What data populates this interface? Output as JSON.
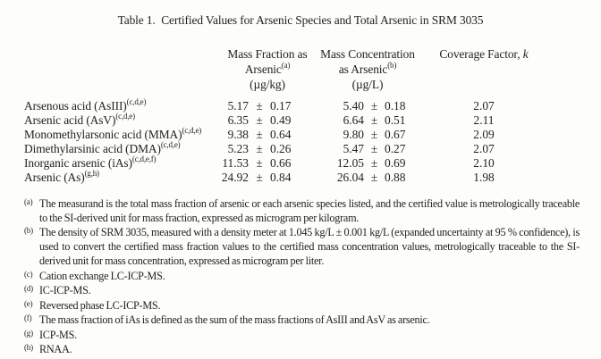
{
  "title": "Table 1.  Certified Values for Arsenic Species and Total Arsenic in SRM 3035",
  "pm_sign": "±",
  "table": {
    "columns": {
      "mass_fraction": {
        "line1": "Mass Fraction as",
        "name": "Arsenic",
        "sup": "(a)",
        "unit": "(µg/kg)"
      },
      "mass_concentration": {
        "line1": "Mass Concentration",
        "name": "as Arsenic",
        "sup": "(b)",
        "unit": "(µg/L)"
      },
      "coverage_factor": {
        "label": "Coverage Factor, ",
        "symbol": "k"
      }
    },
    "rows": [
      {
        "species": "Arsenous acid (AsIII)",
        "sup": "(c,d,e)",
        "mass_fraction": {
          "value": "5.17",
          "uncertainty": "0.17"
        },
        "mass_concentration": {
          "value": "5.40",
          "uncertainty": "0.18"
        },
        "coverage_factor": "2.07"
      },
      {
        "species": "Arsenic acid (AsV)",
        "sup": "(c,d,e)",
        "mass_fraction": {
          "value": "6.35",
          "uncertainty": "0.49"
        },
        "mass_concentration": {
          "value": "6.64",
          "uncertainty": "0.51"
        },
        "coverage_factor": "2.11"
      },
      {
        "species": "Monomethylarsonic acid (MMA)",
        "sup": "(c,d,e)",
        "mass_fraction": {
          "value": "9.38",
          "uncertainty": "0.64"
        },
        "mass_concentration": {
          "value": "9.80",
          "uncertainty": "0.67"
        },
        "coverage_factor": "2.09"
      },
      {
        "species": "Dimethylarsinic acid (DMA)",
        "sup": "(c,d,e)",
        "mass_fraction": {
          "value": "5.23",
          "uncertainty": "0.26"
        },
        "mass_concentration": {
          "value": "5.47",
          "uncertainty": "0.27"
        },
        "coverage_factor": "2.07"
      },
      {
        "species": "Inorganic arsenic (iAs)",
        "sup": "(c,d,e,f)",
        "mass_fraction": {
          "value": "11.53",
          "uncertainty": "0.66"
        },
        "mass_concentration": {
          "value": "12.05",
          "uncertainty": "0.69"
        },
        "coverage_factor": "2.10"
      },
      {
        "species": "Arsenic (As)",
        "sup": "(g,h)",
        "mass_fraction": {
          "value": "24.92",
          "uncertainty": "0.84"
        },
        "mass_concentration": {
          "value": "26.04",
          "uncertainty": "0.88"
        },
        "coverage_factor": "1.98"
      }
    ]
  },
  "footnotes": [
    {
      "marker": "(a)",
      "text": "The measurand is the total mass fraction of arsenic or each arsenic species listed, and the certified value is metrologically traceable to the SI-derived unit for mass fraction, expressed as microgram per kilogram."
    },
    {
      "marker": "(b)",
      "text": "The density of SRM 3035, measured with a density meter at 1.045 kg/L ± 0.001 kg/L (expanded uncertainty at 95 % confidence), is used to convert the certified mass fraction values to the certified mass concentration values, metrologically traceable to the SI-derived unit for mass concentration, expressed as microgram per liter."
    },
    {
      "marker": "(c)",
      "text": "Cation exchange LC-ICP-MS."
    },
    {
      "marker": "(d)",
      "text": "IC-ICP-MS."
    },
    {
      "marker": "(e)",
      "text": "Reversed phase LC-ICP-MS."
    },
    {
      "marker": "(f)",
      "text": "The mass fraction of iAs is defined as the sum of the mass fractions of AsIII and AsV as arsenic."
    },
    {
      "marker": "(g)",
      "text": "ICP-MS."
    },
    {
      "marker": "(h)",
      "text": "RNAA."
    }
  ]
}
